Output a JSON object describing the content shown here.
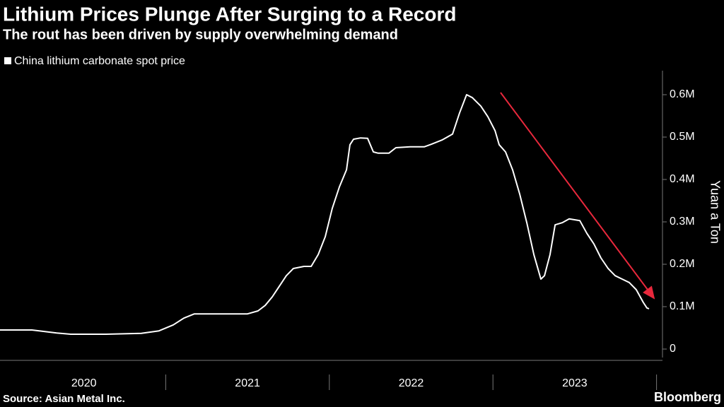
{
  "chart_data": {
    "type": "line",
    "title": "Lithium Prices Plunge After Surging to a Record",
    "subtitle": "The rout has been driven by supply overwhelming demand",
    "y_label": "Yuan a Ton",
    "source": "Source: Asian Metal Inc.",
    "brand": "Bloomberg",
    "x": [
      2019.987,
      2020.182,
      2020.333,
      2020.419,
      2020.635,
      2020.851,
      2020.959,
      2021.046,
      2021.111,
      2021.175,
      2021.24,
      2021.5,
      2021.564,
      2021.608,
      2021.651,
      2021.694,
      2021.737,
      2021.78,
      2021.845,
      2021.889,
      2021.932,
      2021.975,
      2022.018,
      2022.061,
      2022.105,
      2022.126,
      2022.148,
      2022.191,
      2022.234,
      2022.269,
      2022.299,
      2022.364,
      2022.407,
      2022.494,
      2022.58,
      2022.623,
      2022.688,
      2022.753,
      2022.796,
      2022.839,
      2022.874,
      2022.926,
      2022.969,
      2023.013,
      2023.038,
      2023.077,
      2023.12,
      2023.164,
      2023.207,
      2023.25,
      2023.293,
      2023.315,
      2023.349,
      2023.38,
      2023.423,
      2023.466,
      2023.531,
      2023.574,
      2023.617,
      2023.66,
      2023.704,
      2023.747,
      2023.79,
      2023.833,
      2023.876,
      2023.919,
      2023.941,
      2023.954
    ],
    "series": [
      {
        "name": "China lithium carbonate spot price",
        "color": "#ffffff",
        "values": [
          45000,
          45000,
          38000,
          35000,
          35000,
          37000,
          43000,
          57000,
          73000,
          83000,
          83000,
          83000,
          90000,
          103000,
          123000,
          148000,
          173000,
          190000,
          195000,
          195000,
          223000,
          265000,
          332000,
          382000,
          423000,
          482000,
          495000,
          498000,
          497000,
          465000,
          462000,
          462000,
          475000,
          477000,
          477000,
          483000,
          493000,
          507000,
          557000,
          600000,
          593000,
          573000,
          548000,
          515000,
          482000,
          465000,
          423000,
          365000,
          298000,
          223000,
          165000,
          173000,
          223000,
          293000,
          298000,
          307000,
          303000,
          273000,
          248000,
          215000,
          190000,
          173000,
          165000,
          157000,
          140000,
          110000,
          97000,
          95000
        ]
      }
    ],
    "xlim": [
      2019.987,
      2024.0
    ],
    "xticks": [
      2020,
      2021,
      2022,
      2023
    ],
    "ylim": [
      -20000,
      660000
    ],
    "yticks": [
      0,
      {
        "value": 100000,
        "label": "0.1M"
      },
      {
        "value": 200000,
        "label": "0.2M"
      },
      {
        "value": 300000,
        "label": "0.3M"
      },
      {
        "value": 400000,
        "label": "0.4M"
      },
      {
        "value": 500000,
        "label": "0.5M"
      },
      {
        "value": 600000,
        "label": "0.6M"
      }
    ],
    "grid": false
  }
}
